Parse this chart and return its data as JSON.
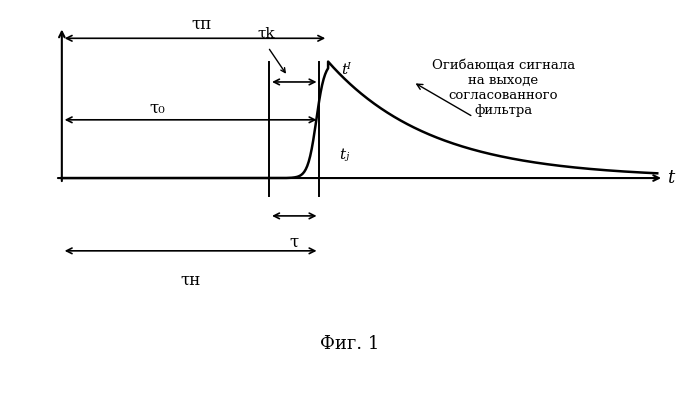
{
  "title": "Фиг. 1",
  "annotation_text": "Огибающая сигнала\nна выходе\nсогласованного\nфильтра",
  "xlabel": "t",
  "background_color": "#ffffff",
  "line_color": "#000000",
  "tau_n_label": "τп",
  "tau_0_label": "τ₀",
  "tau_k_label": "τk",
  "tau_label": "τ",
  "tau_n_bottom_label": "τн",
  "t_i_label": "tᴵ",
  "t_j_label": "tⱼ"
}
